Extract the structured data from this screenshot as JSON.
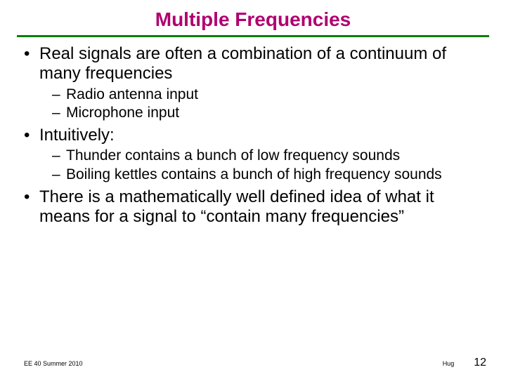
{
  "title": {
    "text": "Multiple Frequencies",
    "color": "#b00070",
    "fontsize": 28
  },
  "rule": {
    "color": "#008000",
    "thickness": 3
  },
  "body": {
    "level1_fontsize": 24,
    "level2_fontsize": 21,
    "color": "#000000",
    "items": [
      {
        "text": "Real signals are often a combination of a continuum of many frequencies",
        "sub": [
          {
            "text": "Radio antenna input"
          },
          {
            "text": "Microphone input"
          }
        ]
      },
      {
        "text": " Intuitively:",
        "sub": [
          {
            "text": "Thunder contains a bunch of low frequency sounds"
          },
          {
            "text": "Boiling kettles contains a bunch of high frequency sounds"
          }
        ]
      },
      {
        "text": "There is a mathematically well defined idea of what it means for a signal to “contain many frequencies”",
        "sub": []
      }
    ]
  },
  "footer": {
    "left": "EE 40 Summer 2010",
    "author": "Hug",
    "page": "12"
  }
}
